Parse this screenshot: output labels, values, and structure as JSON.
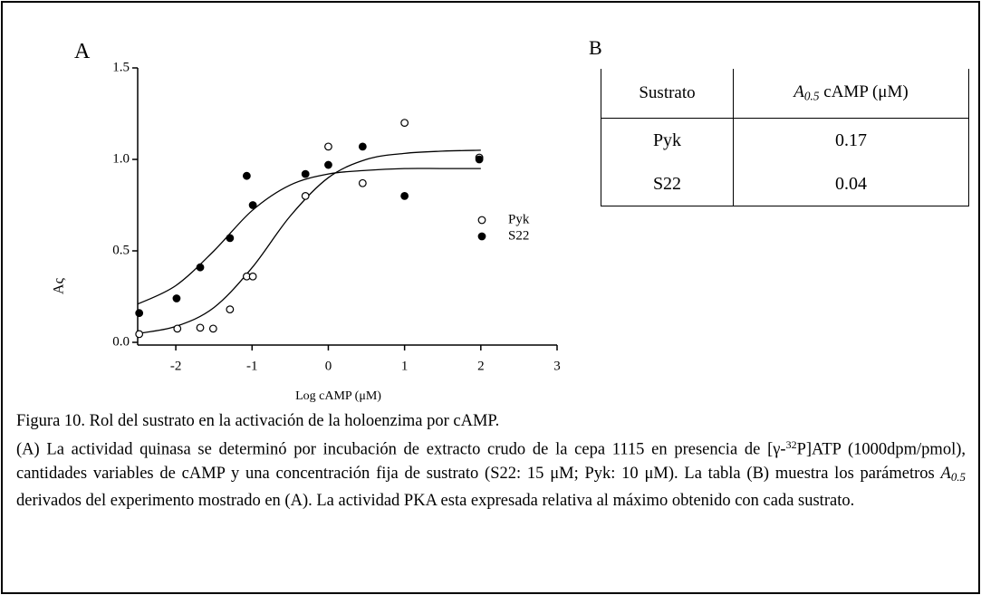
{
  "panel_a_label": "A",
  "panel_b_label": "B",
  "chart_data": {
    "type": "scatter",
    "xlabel": "Log cAMP (μM)",
    "ylabel": "Aς",
    "xlim": [
      -2.5,
      3
    ],
    "xticks": [
      -2,
      -1,
      0,
      1,
      2,
      3
    ],
    "ylim": [
      0,
      1.5
    ],
    "yticks": [
      {
        "value": 0,
        "label": "0.0"
      },
      0.5,
      {
        "value": 1,
        "label": "1.0"
      },
      1.5
    ],
    "legend": "right",
    "series": [
      {
        "name": "Pyk",
        "color": "#000000",
        "marker_fill": "#ffffff",
        "x": [
          -2.48,
          -1.98,
          -1.68,
          -1.51,
          -1.29,
          -1.07,
          -0.99,
          -0.3,
          0,
          0.45,
          1,
          1.98
        ],
        "values": [
          0.045,
          0.075,
          0.08,
          0.075,
          0.18,
          0.36,
          0.36,
          0.8,
          1.07,
          0.87,
          1.2,
          1.01
        ],
        "curve": {
          "x": [
            -2.5,
            -2,
            -1.5,
            -1,
            -0.5,
            0,
            0.5,
            1,
            1.5,
            2
          ],
          "values": [
            0.048,
            0.087,
            0.19,
            0.408,
            0.69,
            0.9,
            1.0,
            1.033,
            1.045,
            1.05
          ]
        }
      },
      {
        "name": "S22",
        "color": "#000000",
        "marker_fill": "#000000",
        "x": [
          -2.48,
          -1.99,
          -1.68,
          -1.29,
          -1.07,
          -0.99,
          -0.3,
          0,
          0.45,
          1,
          1.98
        ],
        "values": [
          0.16,
          0.24,
          0.41,
          0.57,
          0.91,
          0.75,
          0.92,
          0.97,
          1.07,
          0.8,
          1.0
        ],
        "curve": {
          "x": [
            -2.5,
            -2,
            -1.5,
            -1,
            -0.5,
            0,
            0.5,
            1,
            1.5,
            2
          ],
          "values": [
            0.209,
            0.31,
            0.5,
            0.72,
            0.86,
            0.92,
            0.94,
            0.95,
            0.95,
            0.95
          ]
        }
      }
    ]
  },
  "table": {
    "header": [
      [
        {
          "text": "Sustrato"
        }
      ],
      [
        {
          "text": "A",
          "format": "italic"
        },
        {
          "text": "0.5",
          "format": "italic-sub"
        },
        {
          "text": " cAMP (μM)"
        }
      ]
    ],
    "rows": [
      [
        "Pyk",
        "0.17"
      ],
      [
        "S22",
        "0.04"
      ]
    ]
  },
  "caption": {
    "title": "Figura 10.  Rol del sustrato en la activación de la holoenzima por cAMP.",
    "body": [
      {
        "text": "(A) La actividad quinasa se determinó por incubación de extracto crudo de la cepa 1115 en presencia de [γ-"
      },
      {
        "text": "32",
        "format": "sup"
      },
      {
        "text": "P]ATP (1000dpm/pmol), cantidades variables de cAMP y una concentración fija de sustrato (S22: 15 μM; Pyk: 10 μM). La tabla (B) muestra los parámetros "
      },
      {
        "text": "A",
        "format": "italic"
      },
      {
        "text": "0.5",
        "format": "italic-sub"
      },
      {
        "text": " derivados del experimento mostrado en (A). La actividad PKA esta expresada relativa al máximo obtenido con cada sustrato."
      }
    ]
  }
}
